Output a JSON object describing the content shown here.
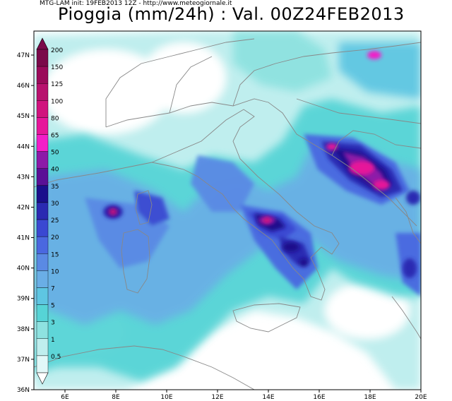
{
  "header": {
    "info_line": "MTG-LAM init: 19FEB2013 12Z - http://www.meteogiornale.it",
    "title": "Pioggia (mm/24h) : Val. 00Z24FEB2013"
  },
  "legend": {
    "levels": [
      {
        "label": "200",
        "color": "#7a0a4a"
      },
      {
        "label": "150",
        "color": "#9a0b5a"
      },
      {
        "label": "125",
        "color": "#b8126e"
      },
      {
        "label": "100",
        "color": "#d0147e"
      },
      {
        "label": "80",
        "color": "#e6179a"
      },
      {
        "label": "65",
        "color": "#f21ec8"
      },
      {
        "label": "50",
        "color": "#8c1aa8"
      },
      {
        "label": "40",
        "color": "#5a1096"
      },
      {
        "label": "35",
        "color": "#1a0f8c"
      },
      {
        "label": "30",
        "color": "#2a2ab2"
      },
      {
        "label": "25",
        "color": "#3a48d2"
      },
      {
        "label": "20",
        "color": "#4a68e0"
      },
      {
        "label": "15",
        "color": "#5a8ae4"
      },
      {
        "label": "10",
        "color": "#6aaee6"
      },
      {
        "label": "7",
        "color": "#5ec6e2"
      },
      {
        "label": "5",
        "color": "#56d4d6"
      },
      {
        "label": "3",
        "color": "#8ee2e0"
      },
      {
        "label": "1",
        "color": "#bfeeee"
      },
      {
        "label": "0.5",
        "color": "#e2f8f8"
      }
    ]
  },
  "axes": {
    "lat_labels": [
      "47N",
      "46N",
      "45N",
      "44N",
      "43N",
      "42N",
      "41N",
      "40N",
      "39N",
      "38N",
      "37N",
      "36N"
    ],
    "lon_labels": [
      "6E",
      "8E",
      "10E",
      "12E",
      "14E",
      "16E",
      "18E",
      "20E"
    ]
  },
  "colors": {
    "land_outline": "#888888",
    "frame": "#000000"
  }
}
